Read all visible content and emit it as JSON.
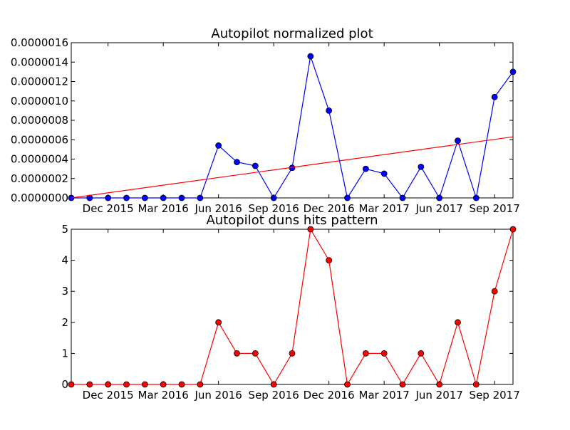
{
  "chart_data": [
    {
      "type": "line",
      "title": "Autopilot normalized plot",
      "xlabel": "",
      "ylabel": "",
      "ylim": [
        0,
        1.6e-06
      ],
      "xlim": [
        "2015-10-01",
        "2017-10-01"
      ],
      "grid": false,
      "x_tick_labels": [
        "Dec 2015",
        "Mar 2016",
        "Jun 2016",
        "Sep 2016",
        "Dec 2016",
        "Mar 2017",
        "Jun 2017",
        "Sep 2017"
      ],
      "y_tick_labels": [
        "0.0000000",
        "0.0000002",
        "0.0000004",
        "0.0000006",
        "0.0000008",
        "0.0000010",
        "0.0000012",
        "0.0000014",
        "0.0000016"
      ],
      "x": [
        "2015-10-01",
        "2015-11-01",
        "2015-12-01",
        "2016-01-01",
        "2016-02-01",
        "2016-03-01",
        "2016-04-01",
        "2016-05-01",
        "2016-06-01",
        "2016-07-01",
        "2016-08-01",
        "2016-09-01",
        "2016-10-01",
        "2016-11-01",
        "2016-12-01",
        "2017-01-01",
        "2017-02-01",
        "2017-03-01",
        "2017-04-01",
        "2017-05-01",
        "2017-06-01",
        "2017-07-01",
        "2017-08-01",
        "2017-09-01",
        "2017-10-01"
      ],
      "series": [
        {
          "values": [
            0,
            0,
            0,
            0,
            0,
            0,
            0,
            0,
            5.4e-07,
            3.7e-07,
            3.3e-07,
            0,
            3.1e-07,
            1.46e-06,
            9e-07,
            0,
            3e-07,
            2.5e-07,
            0,
            3.2e-07,
            0,
            5.9e-07,
            0,
            1.04e-06,
            1.3e-06
          ],
          "color": "#0000ff",
          "marker": "circle"
        },
        {
          "kind": "trend",
          "x": [
            "2015-10-01",
            "2017-10-01"
          ],
          "values": [
            0,
            6.3e-07
          ],
          "color": "#ff0000"
        }
      ]
    },
    {
      "type": "line",
      "title": "Autopilot duns hits pattern",
      "xlabel": "",
      "ylabel": "",
      "ylim": [
        0,
        5
      ],
      "xlim": [
        "2015-10-01",
        "2017-10-01"
      ],
      "grid": false,
      "x_tick_labels": [
        "Dec 2015",
        "Mar 2016",
        "Jun 2016",
        "Sep 2016",
        "Dec 2016",
        "Mar 2017",
        "Jun 2017",
        "Sep 2017"
      ],
      "y_tick_labels": [
        "0",
        "1",
        "2",
        "3",
        "4",
        "5"
      ],
      "x": [
        "2015-10-01",
        "2015-11-01",
        "2015-12-01",
        "2016-01-01",
        "2016-02-01",
        "2016-03-01",
        "2016-04-01",
        "2016-05-01",
        "2016-06-01",
        "2016-07-01",
        "2016-08-01",
        "2016-09-01",
        "2016-10-01",
        "2016-11-01",
        "2016-12-01",
        "2017-01-01",
        "2017-02-01",
        "2017-03-01",
        "2017-04-01",
        "2017-05-01",
        "2017-06-01",
        "2017-07-01",
        "2017-08-01",
        "2017-09-01",
        "2017-10-01"
      ],
      "series": [
        {
          "values": [
            0,
            0,
            0,
            0,
            0,
            0,
            0,
            0,
            2,
            1,
            1,
            0,
            1,
            5,
            4,
            0,
            1,
            1,
            0,
            1,
            0,
            2,
            0,
            3,
            5
          ],
          "color": "#ff0000",
          "marker": "circle"
        }
      ]
    }
  ]
}
